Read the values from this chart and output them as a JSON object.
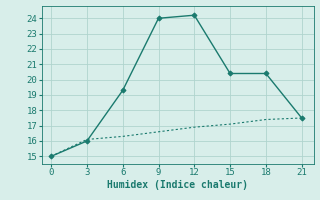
{
  "x": [
    0,
    3,
    6,
    9,
    12,
    15,
    18,
    21
  ],
  "y_line1": [
    15,
    16,
    19.3,
    24,
    24.2,
    20.4,
    20.4,
    17.5
  ],
  "y_line2": [
    15,
    16.1,
    16.3,
    16.6,
    16.9,
    17.1,
    17.4,
    17.5
  ],
  "line_color": "#1a7a6e",
  "bg_color": "#d8eeea",
  "grid_color": "#b0d4ce",
  "xlabel": "Humidex (Indice chaleur)",
  "ylim": [
    14.5,
    24.8
  ],
  "xlim": [
    -0.8,
    22.0
  ],
  "yticks": [
    15,
    16,
    17,
    18,
    19,
    20,
    21,
    22,
    23,
    24
  ],
  "xticks": [
    0,
    3,
    6,
    9,
    12,
    15,
    18,
    21
  ],
  "label_fontsize": 7,
  "tick_fontsize": 6.5
}
